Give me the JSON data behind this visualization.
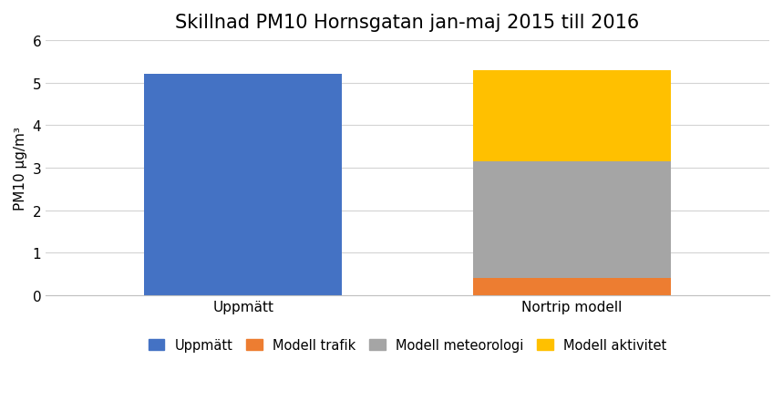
{
  "title": "Skillnad PM10 Hornsgatan jan-maj 2015 till 2016",
  "categories": [
    "Uppmätt",
    "Nortrip modell"
  ],
  "uppmatt_value": 5.2,
  "nortrip_trafik": 0.4,
  "nortrip_meteorologi": 2.75,
  "nortrip_aktivitet": 2.15,
  "colors": {
    "uppmatt": "#4472C4",
    "trafik": "#ED7D31",
    "meteorologi": "#A5A5A5",
    "aktivitet": "#FFC000"
  },
  "ylabel": "PM10 μg/m³",
  "ylim": [
    0,
    6
  ],
  "yticks": [
    0,
    1,
    2,
    3,
    4,
    5,
    6
  ],
  "legend_labels": [
    "Uppmätt",
    "Modell trafik",
    "Modell meteorologi",
    "Modell aktivitet"
  ],
  "background_color": "#ffffff",
  "title_fontsize": 15,
  "label_fontsize": 11,
  "tick_fontsize": 11,
  "legend_fontsize": 10.5,
  "bar_width": 0.6,
  "xlim": [
    -0.6,
    1.6
  ]
}
